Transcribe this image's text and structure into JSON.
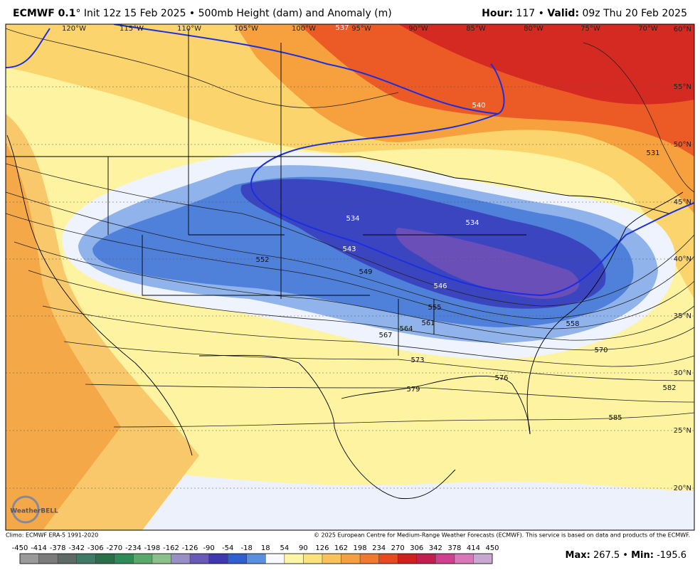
{
  "header": {
    "model": "ECMWF 0.1",
    "init": "° Init 12z 15 Feb 2025 • 500mb Height (dam) and Anomaly (m)",
    "hour_label": "Hour:",
    "hour": " 117 • ",
    "valid_label": "Valid:",
    "valid": " 09z Thu 20 Feb 2025"
  },
  "map": {
    "longitudes": [
      "120°W",
      "115°W",
      "110°W",
      "105°W",
      "100°W",
      "95°W",
      "90°W",
      "85°W",
      "80°W",
      "75°W",
      "70°W"
    ],
    "latitudes": [
      "60°N",
      "55°N",
      "50°N",
      "45°N",
      "40°N",
      "35°N",
      "30°N",
      "25°N",
      "20°N"
    ],
    "contour_labels": [
      "537",
      "540",
      "531",
      "534",
      "534",
      "543",
      "549",
      "552",
      "546",
      "555",
      "561",
      "564",
      "567",
      "573",
      "576",
      "579",
      "582",
      "585",
      "570",
      "558"
    ],
    "logo": "WeatherBELL"
  },
  "footer": {
    "climo": "Climo: ECMWF ERA-5 1991-2020",
    "copyright": "© 2025 European Centre for Medium-Range Weather Forecasts (ECMWF). This service is based on data and products of the ECMWF."
  },
  "colorbar": {
    "ticks": [
      -450,
      -414,
      -378,
      -342,
      -306,
      -270,
      -234,
      -198,
      -162,
      -126,
      -90,
      -54,
      -18,
      18,
      54,
      90,
      126,
      162,
      198,
      234,
      270,
      306,
      342,
      378,
      414,
      450
    ],
    "colors": [
      "#9a9a9a",
      "#7b7b7b",
      "#5d6a66",
      "#3f7a66",
      "#2b6e4a",
      "#2e8b57",
      "#5aa86a",
      "#8cc08a",
      "#9a8fc4",
      "#6a5ab8",
      "#4038b0",
      "#2f5fd0",
      "#5a8fe0",
      "#f7f9ff",
      "#fdf6a8",
      "#fbe27a",
      "#f9c25a",
      "#f5a040",
      "#ef7a30",
      "#e64a22",
      "#d0201e",
      "#c02050",
      "#d04090",
      "#d878b8",
      "#c8a8d0"
    ]
  },
  "stats": {
    "max_label": "Max:",
    "max": " 267.5 • ",
    "min_label": "Min:",
    "min": " -195.6"
  }
}
